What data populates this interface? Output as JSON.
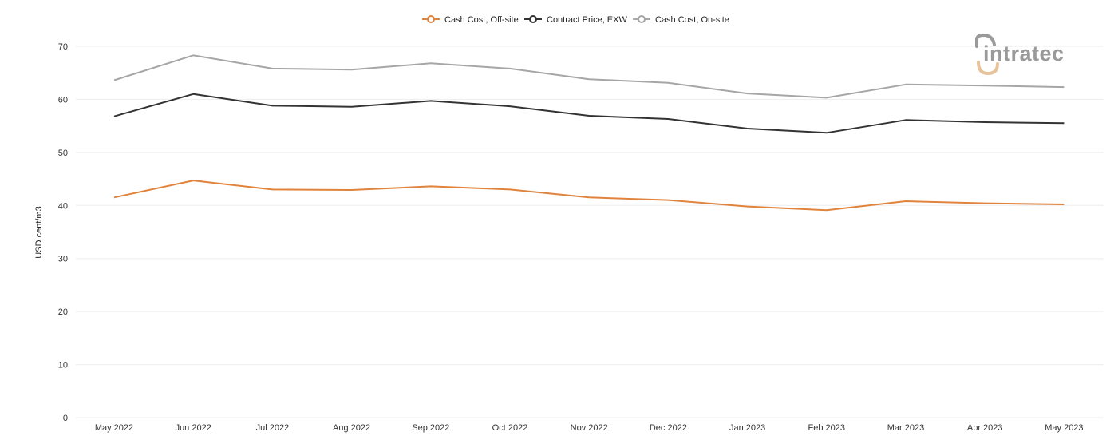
{
  "logo": {
    "text": "intratec",
    "accent_color": "#e8c39a",
    "text_color": "#9a9a9a"
  },
  "chart_data": {
    "type": "line",
    "ylabel": "USD cent/m3",
    "xlabel": "",
    "ylim": [
      0,
      70
    ],
    "yticks": [
      0,
      10,
      20,
      30,
      40,
      50,
      60,
      70
    ],
    "grid": true,
    "legend_position": "top-center",
    "categories": [
      "May 2022",
      "Jun 2022",
      "Jul 2022",
      "Aug 2022",
      "Sep 2022",
      "Oct 2022",
      "Nov 2022",
      "Dec 2022",
      "Jan 2023",
      "Feb 2023",
      "Mar 2023",
      "Apr 2023",
      "May 2023"
    ],
    "series": [
      {
        "name": "Cash Cost, Off-site",
        "color": "#e0833c",
        "values": [
          41.5,
          44.7,
          43.0,
          42.9,
          43.6,
          43.0,
          41.5,
          41.0,
          39.8,
          39.1,
          40.8,
          40.4,
          40.2
        ]
      },
      {
        "name": "Contract Price, EXW",
        "color": "#333333",
        "values": [
          56.8,
          61.0,
          58.8,
          58.6,
          59.7,
          58.7,
          56.9,
          56.3,
          54.5,
          53.7,
          56.1,
          55.7,
          55.5
        ]
      },
      {
        "name": "Cash Cost, On-site",
        "color": "#a6a6a6",
        "values": [
          63.6,
          68.3,
          65.8,
          65.6,
          66.8,
          65.8,
          63.8,
          63.1,
          61.1,
          60.3,
          62.8,
          62.6,
          62.3
        ]
      }
    ]
  }
}
